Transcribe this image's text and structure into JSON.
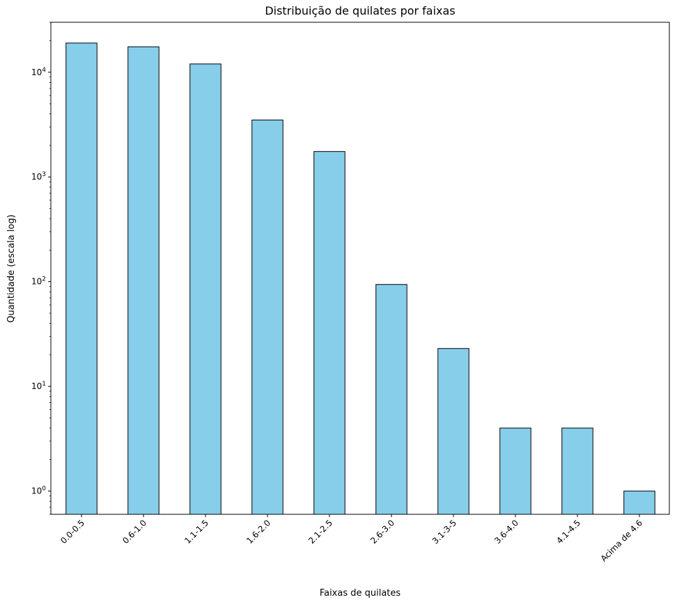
{
  "chart_data": {
    "type": "bar",
    "title": "Distribuição de quilates por faixas",
    "xlabel": "Faixas de quilates",
    "ylabel": "Quantidade (escala log)",
    "yscale": "log",
    "ylim": [
      0.6,
      30000
    ],
    "grid": false,
    "legend": "none",
    "categories": [
      "0.0-0.5",
      "0.6-1.0",
      "1.1-1.5",
      "1.6-2.0",
      "2.1-2.5",
      "2.6-3.0",
      "3.1-3-5",
      "3.6-4.0",
      "4.1-4.5",
      "Acima de 4.6"
    ],
    "values": [
      19000,
      17500,
      12000,
      3500,
      1750,
      94,
      23,
      4,
      4,
      1
    ],
    "y_ticks": [
      {
        "value": 1,
        "base": "10",
        "exp": "0"
      },
      {
        "value": 10,
        "base": "10",
        "exp": "1"
      },
      {
        "value": 100,
        "base": "10",
        "exp": "2"
      },
      {
        "value": 1000,
        "base": "10",
        "exp": "3"
      },
      {
        "value": 10000,
        "base": "10",
        "exp": "4"
      }
    ],
    "colors": {
      "bar_fill": "#87ceeb",
      "bar_edge": "#000000",
      "axes": "#000000"
    }
  }
}
